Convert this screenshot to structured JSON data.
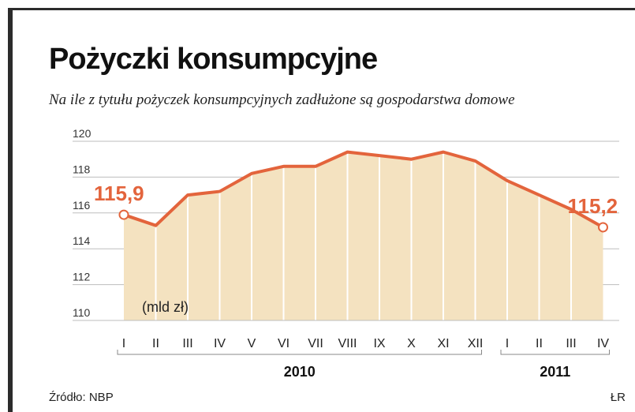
{
  "title": "Pożyczki konsumpcyjne",
  "subtitle": "Na ile z tytułu pożyczek konsumpcyjnych zadłużone są gospodarstwa domowe",
  "source": "Źródło: NBP",
  "credit": "ŁR",
  "colors": {
    "line": "#e3643c",
    "fill": "#f4e2c0",
    "bar_line": "#ffffff",
    "grid": "#bdbdbd",
    "label": "#e3643c"
  },
  "chart_data": {
    "type": "area",
    "title": "Pożyczki konsumpcyjne",
    "unit_label": "(mld zł)",
    "categories": [
      "I",
      "II",
      "III",
      "IV",
      "V",
      "VI",
      "VII",
      "VIII",
      "IX",
      "X",
      "XI",
      "XII",
      "I",
      "II",
      "III",
      "IV"
    ],
    "values": [
      115.9,
      115.3,
      117.0,
      117.2,
      118.2,
      118.6,
      118.6,
      119.4,
      119.2,
      119.0,
      119.4,
      118.9,
      117.8,
      117.0,
      116.2,
      115.2
    ],
    "year_groups": [
      {
        "label": "2010",
        "start": 0,
        "end": 11
      },
      {
        "label": "2011",
        "start": 12,
        "end": 15
      }
    ],
    "yticks": [
      110,
      112,
      114,
      116,
      118,
      120
    ],
    "ylim": [
      110,
      120
    ],
    "grid": true,
    "annotations": [
      {
        "index": 0,
        "text": "115,9"
      },
      {
        "index": 15,
        "text": "115,2"
      }
    ]
  }
}
